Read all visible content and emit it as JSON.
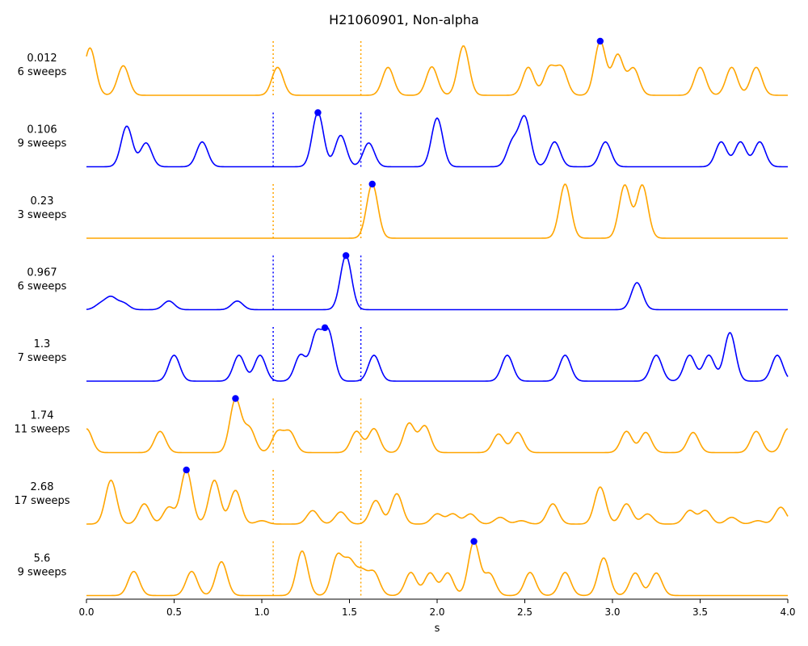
{
  "chart_data": {
    "type": "line",
    "title": "H21060901, Non-alpha",
    "xlabel": "s",
    "xlim": [
      0.0,
      4.0
    ],
    "x_ticks": [
      "0.0",
      "0.5",
      "1.0",
      "1.5",
      "2.0",
      "2.5",
      "3.0",
      "3.5",
      "4.0"
    ],
    "x_tick_values": [
      0.0,
      0.5,
      1.0,
      1.5,
      2.0,
      2.5,
      3.0,
      3.5,
      4.0
    ],
    "vlines": [
      1.065,
      1.565
    ],
    "colors": {
      "orange": "#FFA500",
      "blue": "#0000FF"
    },
    "rows": [
      {
        "value_label": "0.012",
        "sweeps_label": "6 sweeps",
        "color": "orange",
        "marker": 2.93,
        "peaks": [
          [
            0.02,
            0.88
          ],
          [
            0.21,
            0.55
          ],
          [
            1.09,
            0.52
          ],
          [
            1.72,
            0.52
          ],
          [
            1.97,
            0.53
          ],
          [
            2.15,
            0.92
          ],
          [
            2.52,
            0.52
          ],
          [
            2.64,
            0.5
          ],
          [
            2.71,
            0.5
          ],
          [
            2.93,
            1.0
          ],
          [
            3.03,
            0.75
          ],
          [
            3.12,
            0.5
          ],
          [
            3.5,
            0.52
          ],
          [
            3.68,
            0.52
          ],
          [
            3.82,
            0.52
          ]
        ]
      },
      {
        "value_label": "0.106",
        "sweeps_label": "9 sweeps",
        "color": "blue",
        "marker": 1.32,
        "peaks": [
          [
            0.23,
            0.75
          ],
          [
            0.34,
            0.44
          ],
          [
            0.66,
            0.46
          ],
          [
            1.32,
            1.0
          ],
          [
            1.45,
            0.58
          ],
          [
            1.61,
            0.44
          ],
          [
            2.0,
            0.9
          ],
          [
            2.43,
            0.45
          ],
          [
            2.5,
            0.9
          ],
          [
            2.67,
            0.46
          ],
          [
            2.96,
            0.46
          ],
          [
            3.62,
            0.46
          ],
          [
            3.73,
            0.46
          ],
          [
            3.84,
            0.46
          ]
        ]
      },
      {
        "value_label": "0.23",
        "sweeps_label": "3 sweeps",
        "color": "orange",
        "marker": 1.63,
        "peaks": [
          [
            1.63,
            1.0
          ],
          [
            2.73,
            1.0
          ],
          [
            3.07,
            0.98
          ],
          [
            3.17,
            0.98
          ]
        ]
      },
      {
        "value_label": "0.967",
        "sweeps_label": "6 sweeps",
        "color": "blue",
        "marker": 1.48,
        "peaks": [
          [
            0.08,
            0.1
          ],
          [
            0.14,
            0.22
          ],
          [
            0.21,
            0.12
          ],
          [
            0.47,
            0.16
          ],
          [
            0.86,
            0.16
          ],
          [
            1.48,
            1.0
          ],
          [
            3.14,
            0.5
          ]
        ]
      },
      {
        "value_label": "1.3",
        "sweeps_label": "7 sweeps",
        "color": "blue",
        "marker": 1.36,
        "peaks": [
          [
            0.5,
            0.47
          ],
          [
            0.87,
            0.47
          ],
          [
            0.99,
            0.47
          ],
          [
            1.22,
            0.47
          ],
          [
            1.31,
            0.83
          ],
          [
            1.38,
            0.88
          ],
          [
            1.64,
            0.47
          ],
          [
            2.4,
            0.47
          ],
          [
            2.73,
            0.47
          ],
          [
            3.25,
            0.47
          ],
          [
            3.44,
            0.47
          ],
          [
            3.55,
            0.47
          ],
          [
            3.67,
            0.88
          ],
          [
            3.94,
            0.47
          ]
        ]
      },
      {
        "value_label": "1.74",
        "sweeps_label": "11 sweeps",
        "color": "orange",
        "marker": 0.85,
        "peaks": [
          [
            0.0,
            0.45
          ],
          [
            0.42,
            0.4
          ],
          [
            0.85,
            1.0
          ],
          [
            0.93,
            0.45
          ],
          [
            1.09,
            0.38
          ],
          [
            1.16,
            0.38
          ],
          [
            1.54,
            0.4
          ],
          [
            1.64,
            0.45
          ],
          [
            1.84,
            0.55
          ],
          [
            1.93,
            0.5
          ],
          [
            2.35,
            0.35
          ],
          [
            2.46,
            0.38
          ],
          [
            3.08,
            0.4
          ],
          [
            3.19,
            0.38
          ],
          [
            3.46,
            0.38
          ],
          [
            3.82,
            0.4
          ],
          [
            4.0,
            0.45
          ]
        ]
      },
      {
        "value_label": "2.68",
        "sweeps_label": "17 sweeps",
        "color": "orange",
        "marker": 0.57,
        "peaks": [
          [
            0.14,
            0.65
          ],
          [
            0.33,
            0.3
          ],
          [
            0.47,
            0.25
          ],
          [
            0.57,
            0.8
          ],
          [
            0.73,
            0.65
          ],
          [
            0.85,
            0.5
          ],
          [
            1.0,
            0.05
          ],
          [
            1.29,
            0.2
          ],
          [
            1.45,
            0.18
          ],
          [
            1.65,
            0.35
          ],
          [
            1.77,
            0.45
          ],
          [
            2.0,
            0.15
          ],
          [
            2.09,
            0.15
          ],
          [
            2.19,
            0.15
          ],
          [
            2.36,
            0.1
          ],
          [
            2.48,
            0.05
          ],
          [
            2.66,
            0.3
          ],
          [
            2.93,
            0.55
          ],
          [
            3.08,
            0.3
          ],
          [
            3.2,
            0.15
          ],
          [
            3.44,
            0.2
          ],
          [
            3.53,
            0.2
          ],
          [
            3.68,
            0.1
          ],
          [
            3.83,
            0.05
          ],
          [
            3.96,
            0.25
          ]
        ]
      },
      {
        "value_label": "5.6",
        "sweeps_label": "9 sweeps",
        "color": "orange",
        "marker": 2.21,
        "peaks": [
          [
            0.27,
            0.45
          ],
          [
            0.6,
            0.45
          ],
          [
            0.77,
            0.63
          ],
          [
            1.23,
            0.83
          ],
          [
            1.43,
            0.72
          ],
          [
            1.5,
            0.6
          ],
          [
            1.57,
            0.42
          ],
          [
            1.64,
            0.42
          ],
          [
            1.85,
            0.43
          ],
          [
            1.96,
            0.42
          ],
          [
            2.06,
            0.42
          ],
          [
            2.21,
            1.0
          ],
          [
            2.3,
            0.4
          ],
          [
            2.53,
            0.43
          ],
          [
            2.73,
            0.43
          ],
          [
            2.95,
            0.7
          ],
          [
            3.13,
            0.42
          ],
          [
            3.25,
            0.42
          ]
        ]
      }
    ]
  }
}
